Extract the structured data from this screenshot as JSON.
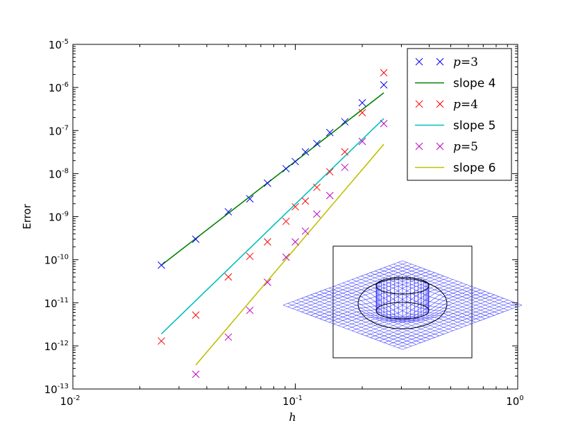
{
  "chart_data": {
    "type": "scatter",
    "xlabel": "h",
    "ylabel": "Error",
    "xscale": "log",
    "yscale": "log",
    "xlim": [
      0.01,
      1
    ],
    "ylim": [
      1e-13,
      1e-05
    ],
    "grid": false,
    "legend_position": "top-right",
    "x_ticks": [
      {
        "base": "10",
        "exp": "-2",
        "value": 0.01
      },
      {
        "base": "10",
        "exp": "-1",
        "value": 0.1
      },
      {
        "base": "10",
        "exp": "0",
        "value": 1
      }
    ],
    "y_ticks": [
      {
        "base": "10",
        "exp": "-13",
        "value": 1e-13
      },
      {
        "base": "10",
        "exp": "-12",
        "value": 1e-12
      },
      {
        "base": "10",
        "exp": "-11",
        "value": 1e-11
      },
      {
        "base": "10",
        "exp": "-10",
        "value": 1e-10
      },
      {
        "base": "10",
        "exp": "-9",
        "value": 1e-09
      },
      {
        "base": "10",
        "exp": "-8",
        "value": 1e-08
      },
      {
        "base": "10",
        "exp": "-7",
        "value": 1e-07
      },
      {
        "base": "10",
        "exp": "-6",
        "value": 1e-06
      },
      {
        "base": "10",
        "exp": "-5",
        "value": 1e-05
      }
    ],
    "series": [
      {
        "name": "p=3",
        "legend_var": "p",
        "legend_val": "3",
        "kind": "marker",
        "color": "#0000ff",
        "x": [
          0.025,
          0.0357,
          0.05,
          0.0625,
          0.075,
          0.0909,
          0.1,
          0.111,
          0.125,
          0.143,
          0.167,
          0.2,
          0.25
        ],
        "y": [
          7.5e-11,
          3e-10,
          1.3e-09,
          2.6e-09,
          6e-09,
          1.3e-08,
          1.9e-08,
          3.2e-08,
          5e-08,
          9e-08,
          1.6e-07,
          4.4e-07,
          1.15e-06
        ]
      },
      {
        "name": "slope 4",
        "kind": "line",
        "color": "#008000",
        "x": [
          0.025,
          0.25
        ],
        "y": [
          7.5e-11,
          7.5e-07
        ]
      },
      {
        "name": "p=4",
        "legend_var": "p",
        "legend_val": "4",
        "kind": "marker",
        "color": "#ff0000",
        "x": [
          0.025,
          0.0357,
          0.05,
          0.0625,
          0.075,
          0.0909,
          0.1,
          0.111,
          0.125,
          0.143,
          0.167,
          0.2,
          0.25
        ],
        "y": [
          1.3e-12,
          5.2e-12,
          4e-11,
          1.2e-10,
          2.6e-10,
          7.8e-10,
          1.7e-09,
          2.3e-09,
          4.8e-09,
          1.1e-08,
          3.2e-08,
          2.6e-07,
          2.2e-06
        ]
      },
      {
        "name": "slope 5",
        "kind": "line",
        "color": "#00bfbf",
        "x": [
          0.025,
          0.25
        ],
        "y": [
          1.9e-12,
          1.9e-07
        ]
      },
      {
        "name": "p=5",
        "legend_var": "p",
        "legend_val": "5",
        "kind": "marker",
        "color": "#bf00bf",
        "x": [
          0.0357,
          0.05,
          0.0625,
          0.075,
          0.0909,
          0.1,
          0.111,
          0.125,
          0.143,
          0.167,
          0.2,
          0.25
        ],
        "y": [
          2.2e-13,
          1.6e-12,
          6.7e-12,
          3e-11,
          1.15e-10,
          2.6e-10,
          4.6e-10,
          1.15e-09,
          3.1e-09,
          1.4e-08,
          5.6e-08,
          1.45e-07
        ]
      },
      {
        "name": "slope 6",
        "kind": "line",
        "color": "#bfbf00",
        "x": [
          0.0357,
          0.25
        ],
        "y": [
          3.6e-13,
          4.8e-08
        ]
      }
    ],
    "inset": {
      "description_icon": "wireframe-mesh-icon",
      "color": "#3b3bff",
      "outline_color": "#000000"
    }
  }
}
